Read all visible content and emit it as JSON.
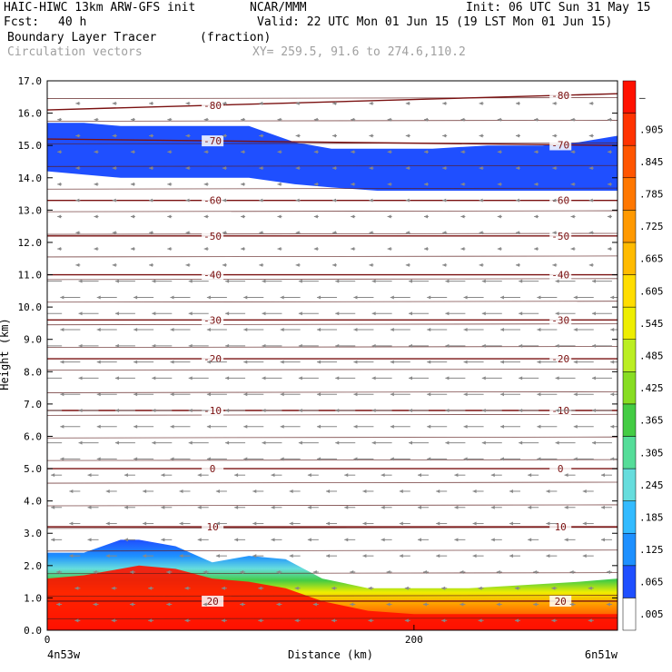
{
  "header": {
    "model": "HAIC-HIWC 13km ARW-GFS init",
    "org": "NCAR/MMM",
    "init": "Init: 06 UTC Sun 31 May 15",
    "fcst_label": "Fcst:",
    "fcst_value": "40 h",
    "valid": "Valid: 22 UTC Mon 01 Jun 15 (19 LST Mon 01 Jun 15)",
    "field": "Boundary Layer Tracer",
    "units": "(fraction)",
    "overlay": "Circulation vectors",
    "xy": "XY= 259.5, 91.6 to 274.6,110.2"
  },
  "chart_data": {
    "type": "heatmap",
    "title": "Boundary Layer Tracer",
    "units": "(fraction)",
    "xlabel": "Distance (km)",
    "ylabel": "Height (km)",
    "xlim": [
      0,
      311
    ],
    "ylim": [
      0,
      17
    ],
    "x_ticks": [
      0,
      200
    ],
    "x_tick_labels": [
      "0",
      "200"
    ],
    "x_endpoints": [
      "4n53w",
      "6n51w"
    ],
    "y_ticks": [
      0,
      1,
      2,
      3,
      4,
      5,
      6,
      7,
      8,
      9,
      10,
      11,
      12,
      13,
      14,
      15,
      16,
      17
    ],
    "y_tick_labels": [
      "0.0",
      "1.0",
      "2.0",
      "3.0",
      "4.0",
      "5.0",
      "6.0",
      "7.0",
      "8.0",
      "9.0",
      "10.0",
      "11.0",
      "12.0",
      "13.0",
      "14.0",
      "15.0",
      "16.0",
      "17.0"
    ],
    "top_label_left": "4n53w",
    "top_label_right": "6n51w",
    "colorbar": {
      "labels": [
        ".005",
        ".065",
        ".125",
        ".185",
        ".245",
        ".305",
        ".365",
        ".425",
        ".485",
        ".545",
        ".605",
        ".665",
        ".725",
        ".785",
        ".845",
        ".905",
        "–"
      ],
      "colors": [
        "#ffffff",
        "#1f4fff",
        "#1e90ff",
        "#33bbff",
        "#66dddd",
        "#55dd99",
        "#44cc44",
        "#88dd22",
        "#bbee22",
        "#eeee00",
        "#ffdd00",
        "#ffbb00",
        "#ff9900",
        "#ff7700",
        "#ff5500",
        "#ff3300",
        "#ff1100"
      ]
    },
    "temperature_contours": [
      {
        "label": "-80",
        "y": [
          16.1,
          16.6
        ]
      },
      {
        "label": "-70",
        "y": [
          15.2,
          15.0
        ]
      },
      {
        "label": "-60",
        "y": [
          13.3,
          13.3
        ]
      },
      {
        "label": "-50",
        "y": [
          12.2,
          12.2
        ]
      },
      {
        "label": "-40",
        "y": [
          11.0,
          11.0
        ]
      },
      {
        "label": "-30",
        "y": [
          9.6,
          9.6
        ]
      },
      {
        "label": "-20",
        "y": [
          8.4,
          8.4
        ]
      },
      {
        "label": "-10",
        "y": [
          6.8,
          6.8
        ]
      },
      {
        "label": "0",
        "y": [
          5.0,
          5.0
        ]
      },
      {
        "label": "10",
        "y": [
          3.2,
          3.2
        ]
      },
      {
        "label": "20",
        "y": [
          0.9,
          0.9
        ]
      }
    ],
    "upper_tracer_layer": {
      "x": [
        0,
        20,
        40,
        65,
        85,
        110,
        135,
        155,
        180,
        210,
        240,
        270,
        290,
        311
      ],
      "top": [
        15.7,
        15.7,
        15.6,
        15.6,
        15.6,
        15.6,
        15.1,
        14.9,
        14.9,
        14.9,
        15.0,
        15.0,
        15.1,
        15.3
      ],
      "bottom": [
        14.2,
        14.1,
        14.0,
        14.0,
        14.0,
        14.0,
        13.8,
        13.7,
        13.6,
        13.6,
        13.6,
        13.6,
        13.6,
        13.6
      ],
      "value": 0.065
    },
    "boundary_layer": {
      "x": [
        0,
        20,
        40,
        50,
        70,
        90,
        110,
        130,
        150,
        175,
        200,
        230,
        260,
        290,
        311
      ],
      "top": [
        2.4,
        2.4,
        2.8,
        2.8,
        2.6,
        2.1,
        2.3,
        2.2,
        1.6,
        1.3,
        1.3,
        1.3,
        1.4,
        1.5,
        1.6
      ],
      "red_top": [
        1.6,
        1.7,
        1.9,
        2.0,
        1.9,
        1.6,
        1.5,
        1.3,
        0.9,
        0.6,
        0.5,
        0.5,
        0.5,
        0.5,
        0.5
      ]
    }
  }
}
